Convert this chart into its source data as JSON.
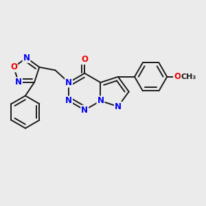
{
  "bg_color": "#ebebeb",
  "bond_color": "#1a1a1a",
  "N_color": "#0000ee",
  "O_color": "#ee0000",
  "lw": 1.4,
  "font_size": 8.5,
  "xlim": [
    -1.55,
    1.75
  ],
  "ylim": [
    -1.25,
    1.1
  ]
}
